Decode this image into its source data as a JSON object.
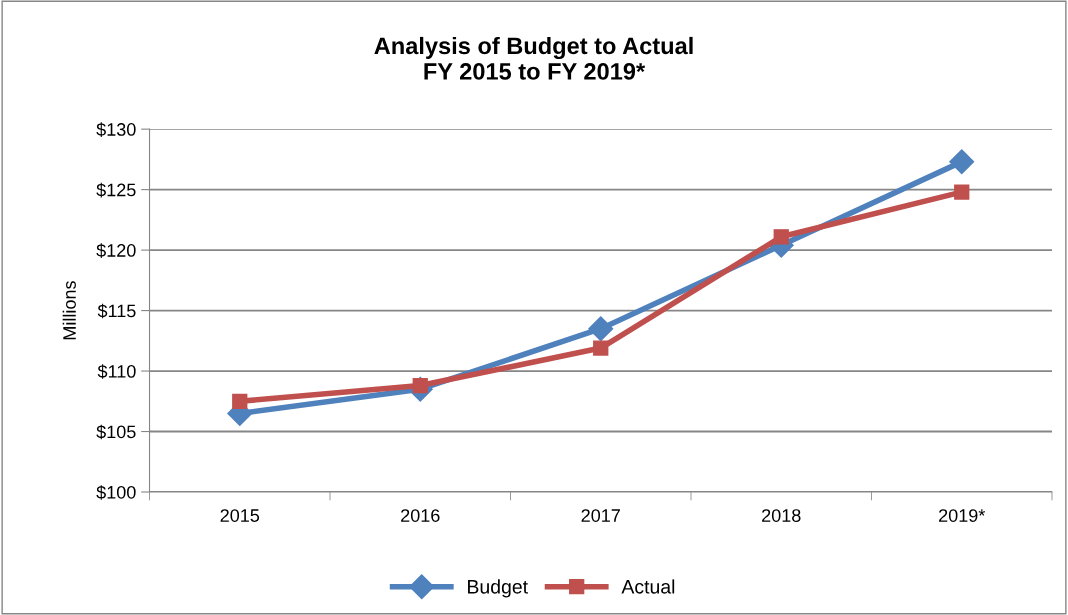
{
  "chart_data": {
    "type": "line",
    "title": "Analysis of Budget to Actual\nFY 2015 to FY 2019*",
    "ylabel": "Millions",
    "categories": [
      "2015",
      "2016",
      "2017",
      "2018",
      "2019*"
    ],
    "series": [
      {
        "name": "Budget",
        "color": "#4f81bd",
        "marker": "diamond",
        "values": [
          106.5,
          108.5,
          113.5,
          120.4,
          127.3
        ]
      },
      {
        "name": "Actual",
        "color": "#c0504d",
        "marker": "square",
        "values": [
          107.5,
          108.8,
          111.9,
          121.1,
          124.8
        ]
      }
    ],
    "ylim": [
      100,
      130
    ],
    "yticks": [
      {
        "value": 100,
        "label": "$100"
      },
      {
        "value": 105,
        "label": "$105"
      },
      {
        "value": 110,
        "label": "$110"
      },
      {
        "value": 115,
        "label": "$115"
      },
      {
        "value": 120,
        "label": "$120"
      },
      {
        "value": 125,
        "label": "$125"
      },
      {
        "value": 130,
        "label": "$130"
      }
    ],
    "grid": "y",
    "legend": "bottom",
    "line_style": "solid"
  }
}
